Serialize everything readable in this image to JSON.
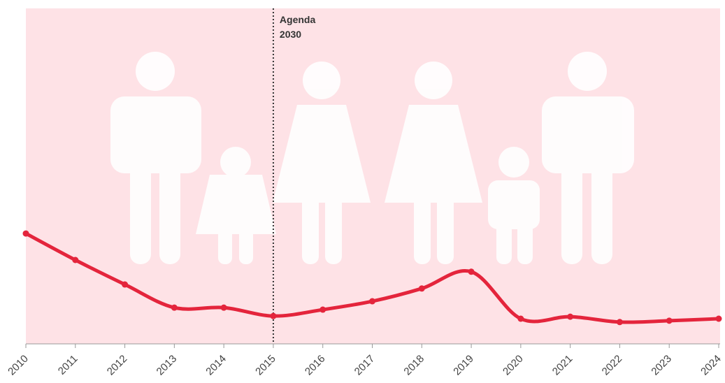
{
  "chart_data": {
    "type": "line",
    "categories": [
      "2010",
      "2011",
      "2012",
      "2013",
      "2014",
      "2015",
      "2016",
      "2017",
      "2018",
      "2019",
      "2020",
      "2021",
      "2022",
      "2023",
      "2024"
    ],
    "series": [
      {
        "name": null,
        "color": "#e4253c",
        "values": [
          32.9,
          25,
          17.7,
          10.8,
          10.8,
          8.3,
          10.2,
          12.7,
          16.5,
          21.5,
          7.5,
          8.1,
          6.5,
          6.9,
          7.5
        ]
      }
    ],
    "ylim": [
      0,
      100
    ],
    "background": "#fee2e6",
    "annotation": {
      "at": "2015",
      "lines": [
        "Agenda",
        "2030"
      ]
    }
  }
}
